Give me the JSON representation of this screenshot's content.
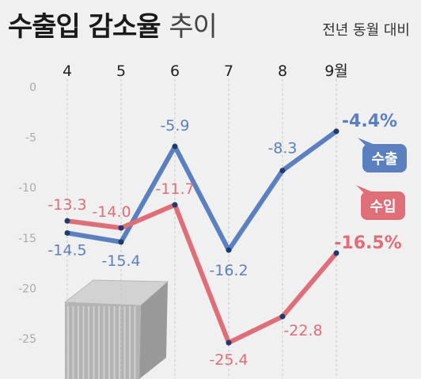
{
  "header": {
    "title_bold": "수출입 감소율",
    "title_light": "추이",
    "subtitle": "전년 동월 대비"
  },
  "colors": {
    "export": "#5b80c0",
    "import": "#de6e77",
    "background": "#f0f0f0"
  },
  "chart_data": {
    "type": "line",
    "categories": [
      "4",
      "5",
      "6",
      "7",
      "8",
      "9월"
    ],
    "ylim": [
      -27,
      0
    ],
    "yticks": [
      0,
      -5,
      -10,
      -15,
      -20,
      -25
    ],
    "grid": "vertical dashed",
    "series": [
      {
        "name": "수출",
        "color": "#5b80c0",
        "values": [
          -14.5,
          -15.4,
          -5.9,
          -16.2,
          -8.3,
          -4.4
        ],
        "labels": [
          "-14.5",
          "-15.4",
          "-5.9",
          "-16.2",
          "-8.3",
          "-4.4%"
        ]
      },
      {
        "name": "수입",
        "color": "#de6e77",
        "values": [
          -13.3,
          -14.0,
          -11.7,
          -25.4,
          -22.8,
          -16.5
        ],
        "labels": [
          "-13.3",
          "-14.0",
          "-11.7",
          "-25.4",
          "-22.8",
          "-16.5%"
        ]
      }
    ]
  }
}
